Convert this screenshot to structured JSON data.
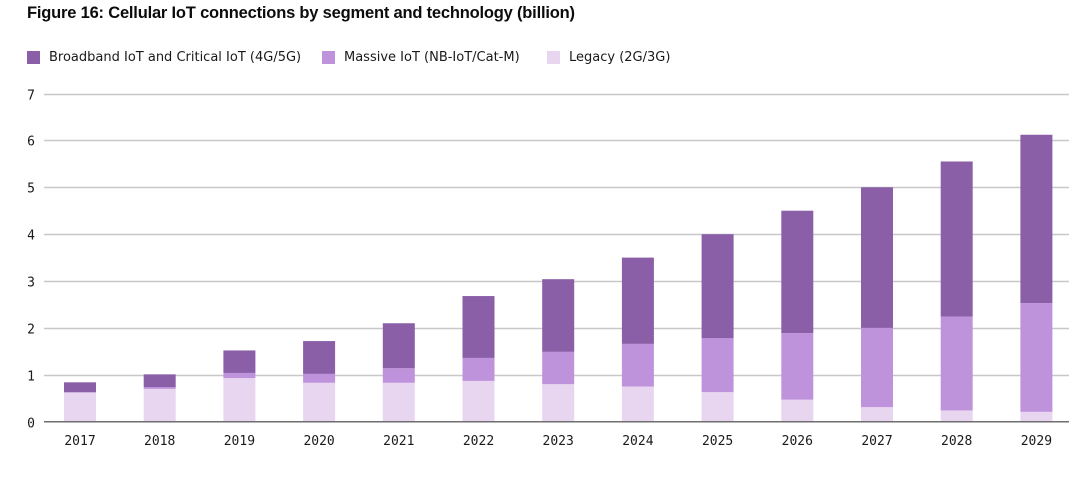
{
  "chart_data": {
    "type": "bar",
    "stacked": true,
    "title": "Figure 16: Cellular IoT connections by segment and technology (billion)",
    "xlabel": "",
    "ylabel": "",
    "ylim": [
      0,
      7
    ],
    "yticks": [
      "0",
      "1",
      "2",
      "3",
      "4",
      "5",
      "6",
      "7"
    ],
    "grid": true,
    "legend_position": "top-left",
    "categories": [
      "2017",
      "2018",
      "2019",
      "2020",
      "2021",
      "2022",
      "2023",
      "2024",
      "2025",
      "2026",
      "2027",
      "2028",
      "2029"
    ],
    "series": [
      {
        "name": "Legacy (2G/3G)",
        "color": "#e8d6f1",
        "values": [
          0.62,
          0.7,
          0.93,
          0.83,
          0.83,
          0.87,
          0.8,
          0.75,
          0.63,
          0.47,
          0.31,
          0.24,
          0.21
        ]
      },
      {
        "name": "Massive IoT (NB-IoT/Cat-M)",
        "color": "#bf93dc",
        "values": [
          0.01,
          0.04,
          0.11,
          0.19,
          0.31,
          0.49,
          0.69,
          0.91,
          1.15,
          1.42,
          1.69,
          2.0,
          2.32
        ]
      },
      {
        "name": "Broadband IoT and Critical IoT (4G/5G)",
        "color": "#8a5fa8",
        "values": [
          0.21,
          0.27,
          0.48,
          0.7,
          0.96,
          1.32,
          1.55,
          1.84,
          2.22,
          2.61,
          3.0,
          3.31,
          3.59
        ]
      }
    ],
    "legend": [
      {
        "label": "Broadband IoT and Critical IoT (4G/5G)",
        "color": "#8a5fa8"
      },
      {
        "label": "Massive IoT (NB-IoT/Cat-M)",
        "color": "#bf93dc"
      },
      {
        "label": "Legacy (2G/3G)",
        "color": "#e8d6f1"
      }
    ],
    "gridline_color": "#c8c8c8",
    "axis_color": "#6e6e6e"
  }
}
